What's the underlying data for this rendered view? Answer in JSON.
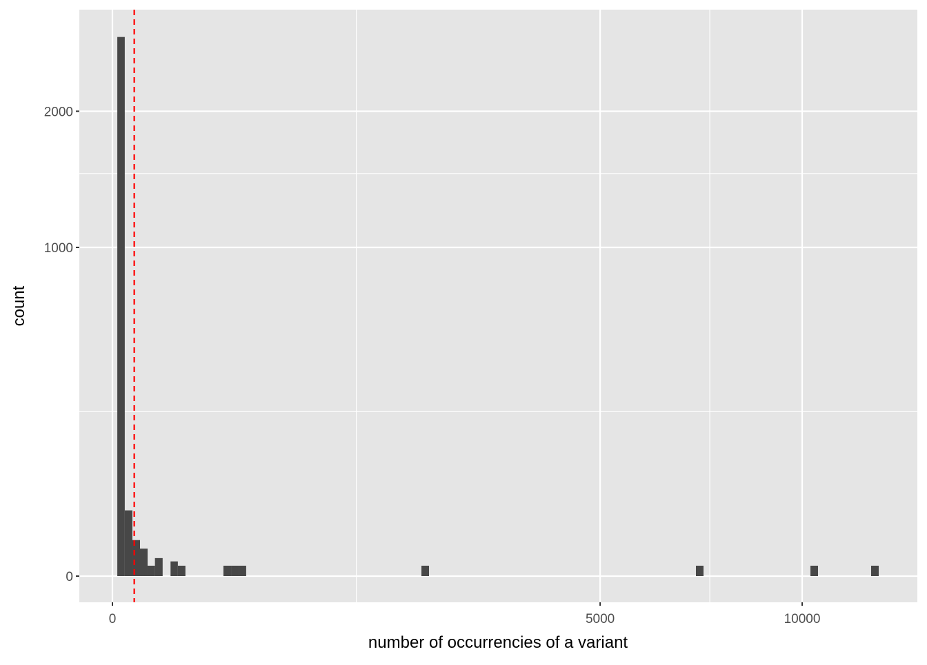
{
  "chart_data": {
    "type": "bar",
    "subtype": "histogram",
    "title": "",
    "xlabel": "number of occurrencies of a variant",
    "ylabel": "count",
    "x_scale": "sqrt",
    "y_scale": "sqrt",
    "x_ticks": [
      0,
      5000,
      10000
    ],
    "x_tick_labels": [
      "0",
      "5000",
      "10000"
    ],
    "x_minor_breaks": [
      1250,
      7500
    ],
    "y_ticks": [
      0,
      1000,
      2000
    ],
    "y_tick_labels": [
      "0",
      "1000",
      "2000"
    ],
    "y_minor_breaks": [
      250,
      1500
    ],
    "xlim": [
      0,
      12343
    ],
    "ylim": [
      0,
      2690
    ],
    "grid": true,
    "bar_color": "#474747",
    "panel_color": "#e5e5e5",
    "threshold_line": {
      "x": 10,
      "color": "#ff0000",
      "style": "dashed"
    },
    "bins": [
      {
        "xmin": 0.5,
        "xmax": 3.2,
        "count": 2690
      },
      {
        "xmin": 3.2,
        "xmax": 8.4,
        "count": 40
      },
      {
        "xmin": 8.4,
        "xmax": 16,
        "count": 12
      },
      {
        "xmin": 16,
        "xmax": 26,
        "count": 7
      },
      {
        "xmin": 26,
        "xmax": 38,
        "count": 1
      },
      {
        "xmin": 38,
        "xmax": 53,
        "count": 3
      },
      {
        "xmin": 71,
        "xmax": 90,
        "count": 2
      },
      {
        "xmin": 90,
        "xmax": 112,
        "count": 1
      },
      {
        "xmin": 259,
        "xmax": 296,
        "count": 1
      },
      {
        "xmin": 296,
        "xmax": 335,
        "count": 1
      },
      {
        "xmin": 335,
        "xmax": 376,
        "count": 1
      },
      {
        "xmin": 2007,
        "xmax": 2107,
        "count": 1
      },
      {
        "xmin": 7157,
        "xmax": 7344,
        "count": 1
      },
      {
        "xmin": 10241,
        "xmax": 10465,
        "count": 1
      },
      {
        "xmin": 12100,
        "xmax": 12343,
        "count": 1
      }
    ]
  }
}
